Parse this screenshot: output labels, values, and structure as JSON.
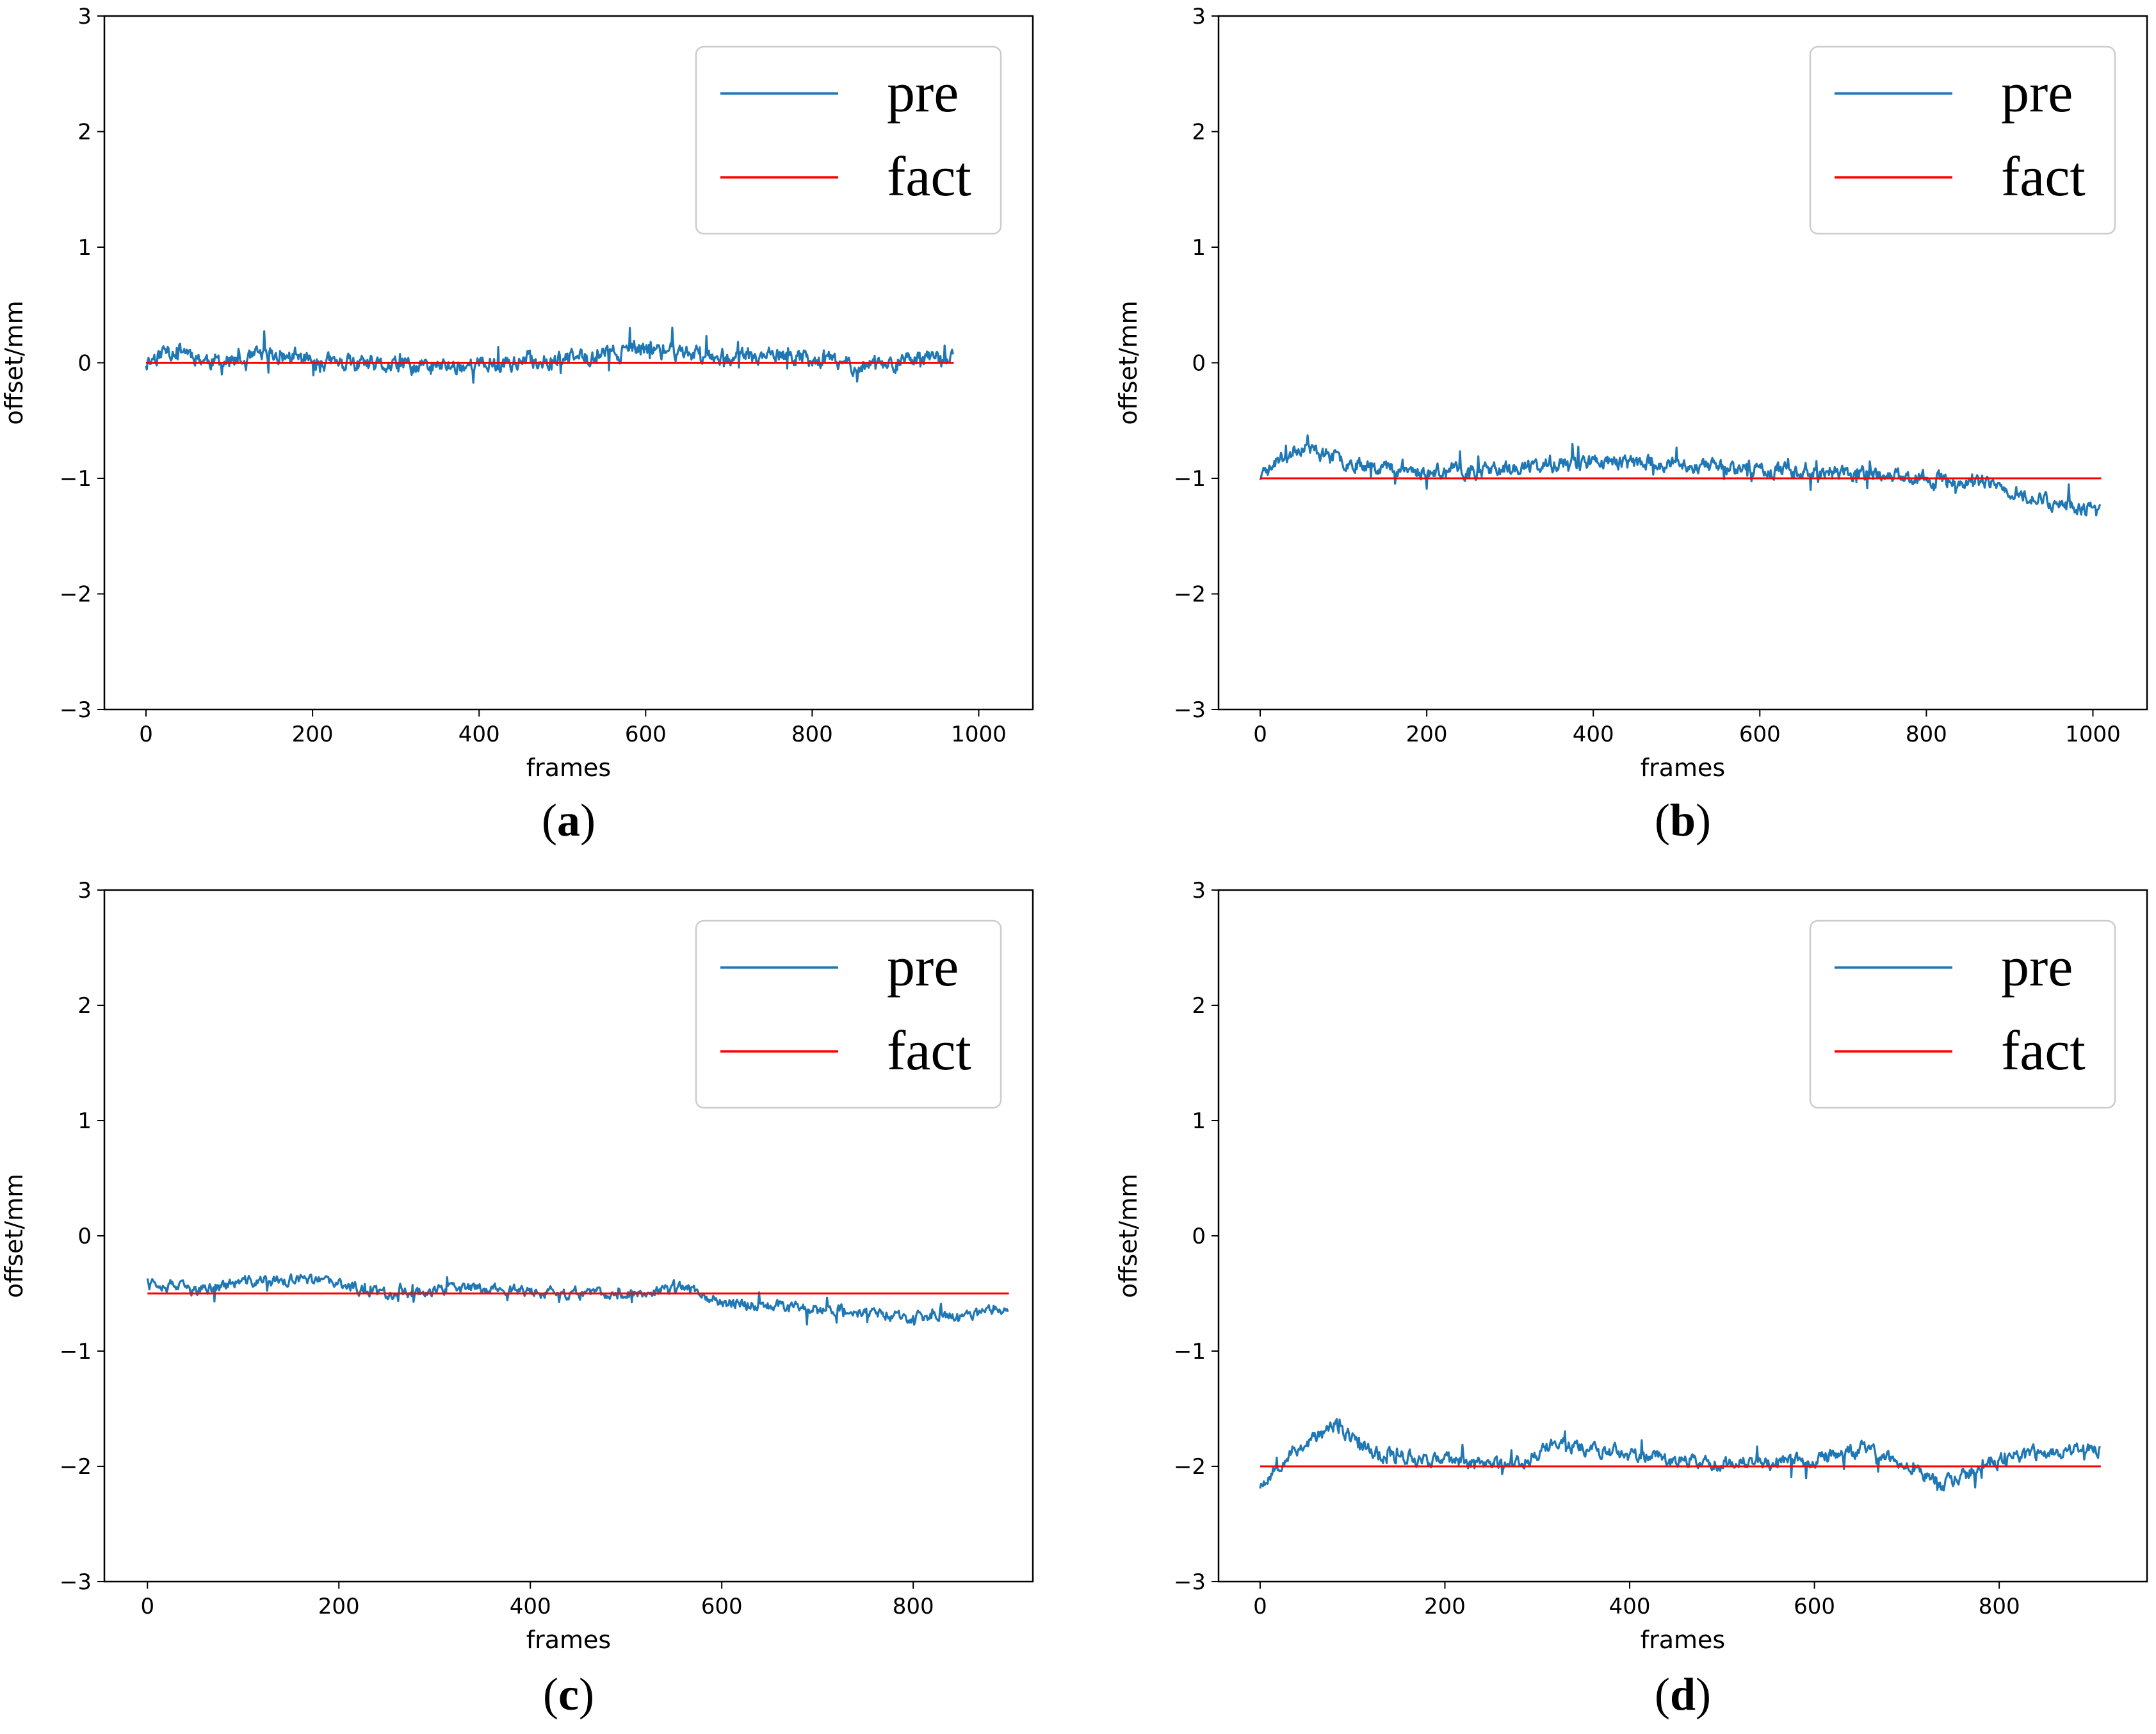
{
  "chart_data": [
    {
      "type": "line",
      "caption": "a",
      "xlabel": "frames",
      "ylabel": "offset/mm",
      "xlim": [
        -50,
        1065
      ],
      "ylim": [
        -3,
        3
      ],
      "xticks": [
        0,
        200,
        400,
        600,
        800,
        1000
      ],
      "yticks": [
        -3,
        -2,
        -1,
        0,
        1,
        2,
        3
      ],
      "legend_position": "top-right",
      "series": [
        {
          "name": "pre",
          "color": "#1f77b4",
          "n_points": 970,
          "trend": [
            [
              0,
              0.0
            ],
            [
              20,
              0.1
            ],
            [
              45,
              0.12
            ],
            [
              70,
              0.02
            ],
            [
              120,
              0.0
            ],
            [
              140,
              0.08
            ],
            [
              220,
              0.0
            ],
            [
              300,
              -0.04
            ],
            [
              400,
              -0.02
            ],
            [
              500,
              0.03
            ],
            [
              600,
              0.12
            ],
            [
              700,
              0.06
            ],
            [
              800,
              0.04
            ],
            [
              850,
              -0.02
            ],
            [
              970,
              0.03
            ]
          ],
          "noise": 0.08,
          "seed": 11
        },
        {
          "name": "fact",
          "color": "#ff0000",
          "x": [
            0,
            970
          ],
          "values": [
            0,
            0
          ]
        }
      ]
    },
    {
      "type": "line",
      "caption": "b",
      "xlabel": "frames",
      "ylabel": "offset/mm",
      "xlim": [
        -50,
        1065
      ],
      "ylim": [
        -3,
        3
      ],
      "xticks": [
        0,
        200,
        400,
        600,
        800,
        1000
      ],
      "yticks": [
        -3,
        -2,
        -1,
        0,
        1,
        2,
        3
      ],
      "legend_position": "top-right",
      "series": [
        {
          "name": "pre",
          "color": "#1f77b4",
          "n_points": 1010,
          "trend": [
            [
              0,
              -1.0
            ],
            [
              20,
              -0.85
            ],
            [
              50,
              -0.72
            ],
            [
              100,
              -0.85
            ],
            [
              200,
              -0.95
            ],
            [
              300,
              -0.92
            ],
            [
              400,
              -0.85
            ],
            [
              500,
              -0.88
            ],
            [
              600,
              -0.92
            ],
            [
              700,
              -0.95
            ],
            [
              800,
              -1.0
            ],
            [
              870,
              -1.05
            ],
            [
              950,
              -1.2
            ],
            [
              1010,
              -1.3
            ]
          ],
          "noise": 0.07,
          "seed": 23
        },
        {
          "name": "fact",
          "color": "#ff0000",
          "x": [
            0,
            1010
          ],
          "values": [
            -1,
            -1
          ]
        }
      ]
    },
    {
      "type": "line",
      "caption": "c",
      "xlabel": "frames",
      "ylabel": "offset/mm",
      "xlim": [
        -45,
        925
      ],
      "ylim": [
        -3,
        3
      ],
      "xticks": [
        0,
        200,
        400,
        600,
        800
      ],
      "yticks": [
        -3,
        -2,
        -1,
        0,
        1,
        2,
        3
      ],
      "legend_position": "top-right",
      "series": [
        {
          "name": "pre",
          "color": "#1f77b4",
          "n_points": 900,
          "trend": [
            [
              0,
              -0.38
            ],
            [
              50,
              -0.48
            ],
            [
              100,
              -0.4
            ],
            [
              170,
              -0.38
            ],
            [
              250,
              -0.5
            ],
            [
              350,
              -0.45
            ],
            [
              420,
              -0.5
            ],
            [
              500,
              -0.5
            ],
            [
              570,
              -0.45
            ],
            [
              600,
              -0.58
            ],
            [
              700,
              -0.62
            ],
            [
              800,
              -0.72
            ],
            [
              900,
              -0.65
            ]
          ],
          "noise": 0.055,
          "seed": 37
        },
        {
          "name": "fact",
          "color": "#ff0000",
          "x": [
            0,
            900
          ],
          "values": [
            -0.5,
            -0.5
          ]
        }
      ]
    },
    {
      "type": "line",
      "caption": "d",
      "xlabel": "frames",
      "ylabel": "offset/mm",
      "xlim": [
        -45,
        960
      ],
      "ylim": [
        -3,
        3
      ],
      "xticks": [
        0,
        200,
        400,
        600,
        800
      ],
      "yticks": [
        -3,
        -2,
        -1,
        0,
        1,
        2,
        3
      ],
      "legend_position": "top-right",
      "series": [
        {
          "name": "pre",
          "color": "#1f77b4",
          "n_points": 910,
          "trend": [
            [
              0,
              -2.15
            ],
            [
              30,
              -1.9
            ],
            [
              80,
              -1.65
            ],
            [
              130,
              -1.9
            ],
            [
              200,
              -1.95
            ],
            [
              280,
              -1.98
            ],
            [
              320,
              -1.8
            ],
            [
              400,
              -1.9
            ],
            [
              500,
              -1.98
            ],
            [
              600,
              -1.95
            ],
            [
              650,
              -1.85
            ],
            [
              700,
              -2.0
            ],
            [
              740,
              -2.15
            ],
            [
              800,
              -1.95
            ],
            [
              850,
              -1.88
            ],
            [
              910,
              -1.85
            ]
          ],
          "noise": 0.07,
          "seed": 53
        },
        {
          "name": "fact",
          "color": "#ff0000",
          "x": [
            0,
            910
          ],
          "values": [
            -2,
            -2
          ]
        }
      ]
    }
  ]
}
